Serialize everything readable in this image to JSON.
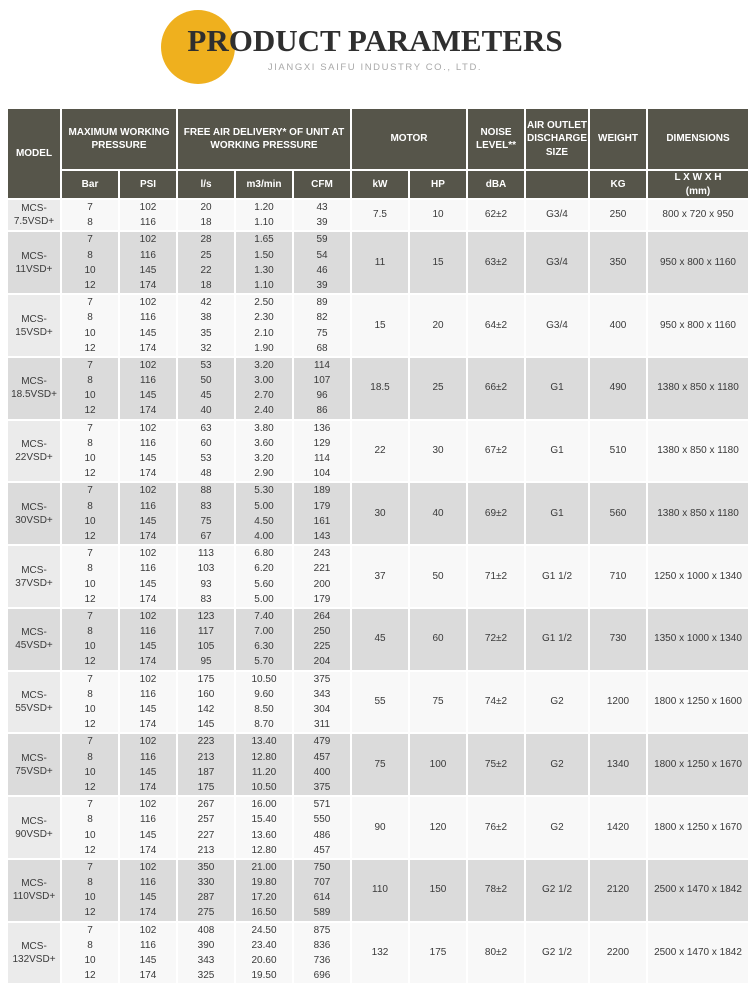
{
  "brand": {
    "title": "PRODUCT PARAMETERS",
    "subtitle": "JIANGXI SAIFU INDUSTRY CO., LTD.",
    "accent_color": "#EFB01E"
  },
  "table": {
    "colors": {
      "header_bg": "#56554A",
      "row_light": "#F8F8F8",
      "row_dark": "#DBDBDB"
    },
    "header": {
      "model": "MODEL",
      "max_working_pressure": "MAXIMUM WORKING PRESSURE",
      "free_air_delivery": "FREE AIR DELIVERY* OF UNIT AT WORKING PRESSURE",
      "motor": "MOTOR",
      "noise_level": "NOISE LEVEL**",
      "air_outlet": "AIR OUTLET DISCHARGE SIZE",
      "weight": "WEIGHT",
      "dimensions": "DIMENSIONS",
      "units": {
        "bar": "Bar",
        "psi": "PSI",
        "ls": "l/s",
        "m3min": "m3/min",
        "cfm": "CFM",
        "kw": "kW",
        "hp": "HP",
        "dba": "dBA",
        "outlet": "",
        "kg": "KG",
        "dim": "L X W X H\n(mm)"
      }
    },
    "rows": [
      {
        "model": "MCS-7.5VSD+",
        "bar": [
          7,
          8
        ],
        "psi": [
          102,
          116
        ],
        "ls": [
          20,
          18
        ],
        "m3min": [
          "1.20",
          "1.10"
        ],
        "cfm": [
          43,
          39
        ],
        "kw": "7.5",
        "hp": "10",
        "dba": "62±2",
        "outlet": "G3/4",
        "kg": "250",
        "dim": "800 x 720 x 950"
      },
      {
        "model": "MCS-11VSD+",
        "bar": [
          7,
          8,
          10,
          12
        ],
        "psi": [
          102,
          116,
          145,
          174
        ],
        "ls": [
          28,
          25,
          22,
          18
        ],
        "m3min": [
          "1.65",
          "1.50",
          "1.30",
          "1.10"
        ],
        "cfm": [
          59,
          54,
          46,
          39
        ],
        "kw": "11",
        "hp": "15",
        "dba": "63±2",
        "outlet": "G3/4",
        "kg": "350",
        "dim": "950 x 800 x 1160"
      },
      {
        "model": "MCS-15VSD+",
        "bar": [
          7,
          8,
          10,
          12
        ],
        "psi": [
          102,
          116,
          145,
          174
        ],
        "ls": [
          42,
          38,
          35,
          32
        ],
        "m3min": [
          "2.50",
          "2.30",
          "2.10",
          "1.90"
        ],
        "cfm": [
          89,
          82,
          75,
          68
        ],
        "kw": "15",
        "hp": "20",
        "dba": "64±2",
        "outlet": "G3/4",
        "kg": "400",
        "dim": "950 x 800 x 1160"
      },
      {
        "model": "MCS-18.5VSD+",
        "bar": [
          7,
          8,
          10,
          12
        ],
        "psi": [
          102,
          116,
          145,
          174
        ],
        "ls": [
          53,
          50,
          45,
          40
        ],
        "m3min": [
          "3.20",
          "3.00",
          "2.70",
          "2.40"
        ],
        "cfm": [
          114,
          107,
          96,
          86
        ],
        "kw": "18.5",
        "hp": "25",
        "dba": "66±2",
        "outlet": "G1",
        "kg": "490",
        "dim": "1380 x 850 x 1180"
      },
      {
        "model": "MCS-22VSD+",
        "bar": [
          7,
          8,
          10,
          12
        ],
        "psi": [
          102,
          116,
          145,
          174
        ],
        "ls": [
          63,
          60,
          53,
          48
        ],
        "m3min": [
          "3.80",
          "3.60",
          "3.20",
          "2.90"
        ],
        "cfm": [
          136,
          129,
          114,
          104
        ],
        "kw": "22",
        "hp": "30",
        "dba": "67±2",
        "outlet": "G1",
        "kg": "510",
        "dim": "1380 x 850 x 1180"
      },
      {
        "model": "MCS-30VSD+",
        "bar": [
          7,
          8,
          10,
          12
        ],
        "psi": [
          102,
          116,
          145,
          174
        ],
        "ls": [
          88,
          83,
          75,
          67
        ],
        "m3min": [
          "5.30",
          "5.00",
          "4.50",
          "4.00"
        ],
        "cfm": [
          189,
          179,
          161,
          143
        ],
        "kw": "30",
        "hp": "40",
        "dba": "69±2",
        "outlet": "G1",
        "kg": "560",
        "dim": "1380 x 850 x 1180"
      },
      {
        "model": "MCS-37VSD+",
        "bar": [
          7,
          8,
          10,
          12
        ],
        "psi": [
          102,
          116,
          145,
          174
        ],
        "ls": [
          113,
          103,
          93,
          83
        ],
        "m3min": [
          "6.80",
          "6.20",
          "5.60",
          "5.00"
        ],
        "cfm": [
          243,
          221,
          200,
          179
        ],
        "kw": "37",
        "hp": "50",
        "dba": "71±2",
        "outlet": "G1 1/2",
        "kg": "710",
        "dim": "1250 x 1000 x 1340"
      },
      {
        "model": "MCS-45VSD+",
        "bar": [
          7,
          8,
          10,
          12
        ],
        "psi": [
          102,
          116,
          145,
          174
        ],
        "ls": [
          123,
          117,
          105,
          95
        ],
        "m3min": [
          "7.40",
          "7.00",
          "6.30",
          "5.70"
        ],
        "cfm": [
          264,
          250,
          225,
          204
        ],
        "kw": "45",
        "hp": "60",
        "dba": "72±2",
        "outlet": "G1 1/2",
        "kg": "730",
        "dim": "1350 x 1000 x 1340"
      },
      {
        "model": "MCS-55VSD+",
        "bar": [
          7,
          8,
          10,
          12
        ],
        "psi": [
          102,
          116,
          145,
          174
        ],
        "ls": [
          175,
          160,
          142,
          145
        ],
        "m3min": [
          "10.50",
          "9.60",
          "8.50",
          "8.70"
        ],
        "cfm": [
          375,
          343,
          304,
          311
        ],
        "kw": "55",
        "hp": "75",
        "dba": "74±2",
        "outlet": "G2",
        "kg": "1200",
        "dim": "1800 x 1250 x 1600"
      },
      {
        "model": "MCS-75VSD+",
        "bar": [
          7,
          8,
          10,
          12
        ],
        "psi": [
          102,
          116,
          145,
          174
        ],
        "ls": [
          223,
          213,
          187,
          175
        ],
        "m3min": [
          "13.40",
          "12.80",
          "11.20",
          "10.50"
        ],
        "cfm": [
          479,
          457,
          400,
          375
        ],
        "kw": "75",
        "hp": "100",
        "dba": "75±2",
        "outlet": "G2",
        "kg": "1340",
        "dim": "1800 x 1250 x 1670"
      },
      {
        "model": "MCS-90VSD+",
        "bar": [
          7,
          8,
          10,
          12
        ],
        "psi": [
          102,
          116,
          145,
          174
        ],
        "ls": [
          267,
          257,
          227,
          213
        ],
        "m3min": [
          "16.00",
          "15.40",
          "13.60",
          "12.80"
        ],
        "cfm": [
          571,
          550,
          486,
          457
        ],
        "kw": "90",
        "hp": "120",
        "dba": "76±2",
        "outlet": "G2",
        "kg": "1420",
        "dim": "1800 x 1250 x 1670"
      },
      {
        "model": "MCS-110VSD+",
        "bar": [
          7,
          8,
          10,
          12
        ],
        "psi": [
          102,
          116,
          145,
          174
        ],
        "ls": [
          350,
          330,
          287,
          275
        ],
        "m3min": [
          "21.00",
          "19.80",
          "17.20",
          "16.50"
        ],
        "cfm": [
          750,
          707,
          614,
          589
        ],
        "kw": "110",
        "hp": "150",
        "dba": "78±2",
        "outlet": "G2 1/2",
        "kg": "2120",
        "dim": "2500 x 1470 x 1842"
      },
      {
        "model": "MCS-132VSD+",
        "bar": [
          7,
          8,
          10,
          12
        ],
        "psi": [
          102,
          116,
          145,
          174
        ],
        "ls": [
          408,
          390,
          343,
          325
        ],
        "m3min": [
          "24.50",
          "23.40",
          "20.60",
          "19.50"
        ],
        "cfm": [
          875,
          836,
          736,
          696
        ],
        "kw": "132",
        "hp": "175",
        "dba": "80±2",
        "outlet": "G2 1/2",
        "kg": "2200",
        "dim": "2500 x 1470 x 1842"
      }
    ]
  }
}
